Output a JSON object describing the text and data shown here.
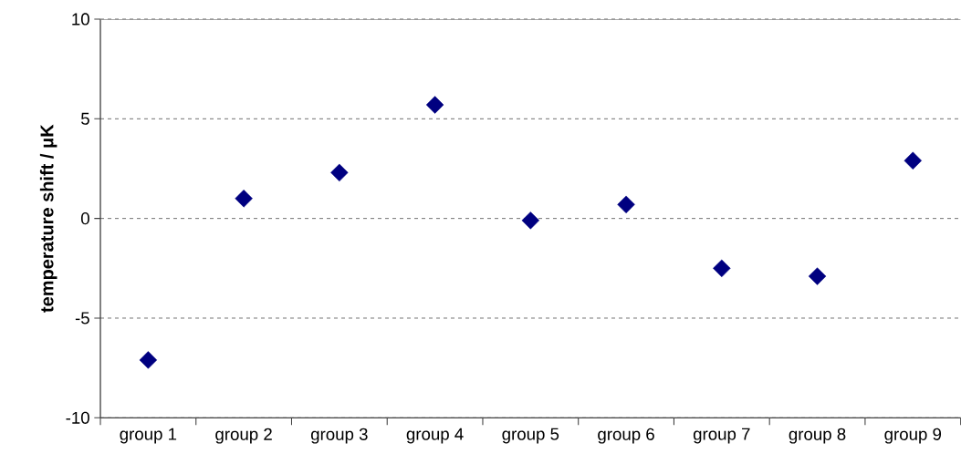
{
  "chart_data": {
    "type": "scatter",
    "ylabel": "temperature shift / μK",
    "categories": [
      "group 1",
      "group 2",
      "group 3",
      "group 4",
      "group 5",
      "group 6",
      "group 7",
      "group 8",
      "group 9"
    ],
    "values": [
      -7.1,
      1.0,
      2.3,
      5.7,
      -0.1,
      0.7,
      -2.5,
      -2.9,
      2.9
    ],
    "color": "#000080",
    "marker": "diamond",
    "ylim": [
      -10,
      10
    ],
    "yticks": [
      -10,
      -5,
      0,
      5,
      10
    ],
    "grid": "y"
  }
}
